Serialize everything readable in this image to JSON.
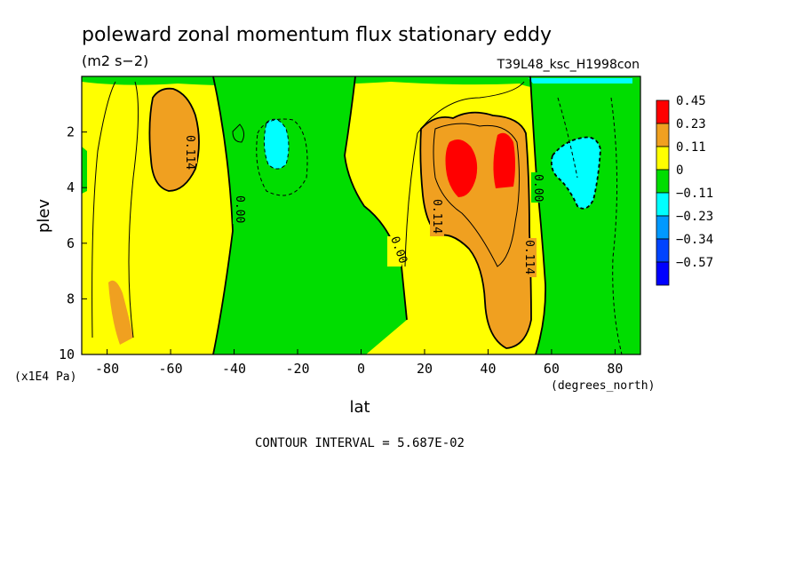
{
  "chart_data": {
    "type": "heatmap",
    "title": "poleward zonal momentum flux stationary eddy",
    "units": "(m2 s−2)",
    "run_label": "T39L48_ksc_H1998con",
    "xlabel": "lat",
    "x_units": "(degrees_north)",
    "ylabel": "plev",
    "y_units": "(x1E4 Pa)",
    "xlim": [
      -88,
      88
    ],
    "ylim": [
      0,
      10
    ],
    "y_inverted": true,
    "x_ticks": [
      "-80",
      "-60",
      "-40",
      "-20",
      "0",
      "20",
      "40",
      "60",
      "80"
    ],
    "x_tick_values": [
      -80,
      -60,
      -40,
      -20,
      0,
      20,
      40,
      60,
      80
    ],
    "y_ticks": [
      "2",
      "4",
      "6",
      "8",
      "10"
    ],
    "y_tick_values": [
      2,
      4,
      6,
      8,
      10
    ],
    "contour_interval_text": "CONTOUR INTERVAL = 5.687E-02",
    "contour_labels": [
      "0.114",
      "0.00",
      "0.00",
      "0.114",
      "0.00",
      "0.114"
    ],
    "legend": {
      "placement": "right",
      "levels": [
        {
          "label": "0.45",
          "color": "#ff0000"
        },
        {
          "label": "0.23",
          "color": "#f0a020"
        },
        {
          "label": "0.11",
          "color": "#ffff00"
        },
        {
          "label": "0",
          "color": "#00dd00"
        },
        {
          "label": "−0.11",
          "color": "#00ffff"
        },
        {
          "label": "−0.23",
          "color": "#0099ff"
        },
        {
          "label": "−0.34",
          "color": "#0044ff"
        },
        {
          "label": "−0.57",
          "color": "#0000ff"
        }
      ]
    },
    "regions": [
      {
        "name": "positive-sh-subtropics",
        "lat_range": [
          -88,
          -45
        ],
        "plev_range": [
          0,
          10
        ],
        "level": "0 to 0.11"
      },
      {
        "name": "max-sh-jet",
        "lat_range": [
          -65,
          -53
        ],
        "plev_range": [
          1,
          3.7
        ],
        "level": "0.11 to 0.23"
      },
      {
        "name": "negative-sh-midlat",
        "lat_range": [
          -45,
          0
        ],
        "plev_range": [
          0,
          10
        ],
        "level": "-0.11 to 0"
      },
      {
        "name": "negative-sh-core",
        "lat_range": [
          -32,
          -24
        ],
        "plev_range": [
          1.8,
          2.8
        ],
        "level": "-0.23 to -0.11"
      },
      {
        "name": "positive-nh",
        "lat_range": [
          18,
          58
        ],
        "plev_range": [
          1,
          10
        ],
        "level": "0.11 to 0.23"
      },
      {
        "name": "max-nh-jet-1",
        "lat_range": [
          26,
          36
        ],
        "plev_range": [
          2.5,
          4.2
        ],
        "level": "0.23 to 0.45"
      },
      {
        "name": "max-nh-jet-2",
        "lat_range": [
          40,
          48
        ],
        "plev_range": [
          2.0,
          3.9
        ],
        "level": "0.23 to 0.45"
      },
      {
        "name": "negative-nh-high-lat",
        "lat_range": [
          58,
          82
        ],
        "plev_range": [
          0,
          10
        ],
        "level": "-0.11 to 0"
      },
      {
        "name": "negative-nh-core",
        "lat_range": [
          62,
          74
        ],
        "plev_range": [
          2.2,
          4.7
        ],
        "level": "-0.23 to -0.11"
      }
    ]
  }
}
